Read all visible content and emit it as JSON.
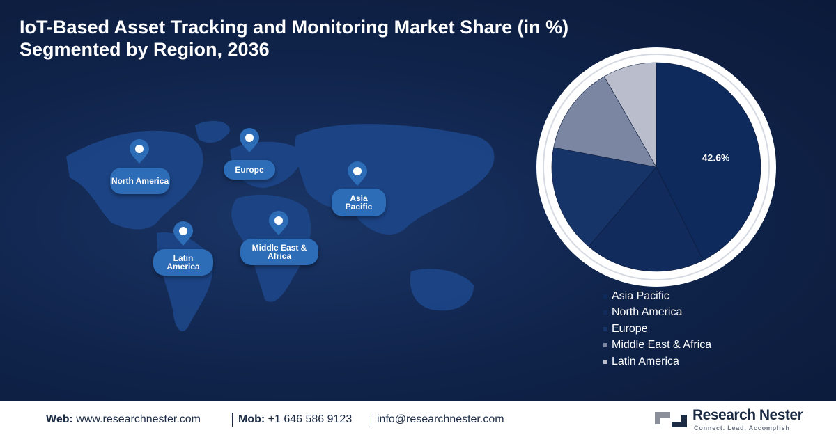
{
  "chart_data": {
    "type": "pie",
    "title": "IoT-Based Asset Tracking and Monitoring Market Share (in %)",
    "subtitle": "Segmented by Region, 2036",
    "categories": [
      "Asia Pacific",
      "North America",
      "Europe",
      "Middle East & Africa",
      "Latin America"
    ],
    "values": [
      42.6,
      18.6,
      16.8,
      13.7,
      8.3
    ],
    "value_labels": [
      "42.6%",
      null,
      null,
      null,
      null
    ],
    "colors": [
      "#0e2a5c",
      "#112b5d",
      "#173469",
      "#7b86a3",
      "#b9bdcc"
    ]
  },
  "map_labels": [
    "North America",
    "Europe",
    "Asia Pacific",
    "Middle East & Africa",
    "Latin America"
  ],
  "footer": {
    "items": [
      {
        "label": "Web:",
        "text": "www.researchnester.com"
      },
      {
        "label": "Mob:",
        "text": "+1 646 586 9123"
      },
      {
        "label": null,
        "text": "info@researchnester.com"
      }
    ]
  },
  "logo": {
    "name": "Research Nester",
    "tagline": "Connect. Lead. Accomplish"
  }
}
